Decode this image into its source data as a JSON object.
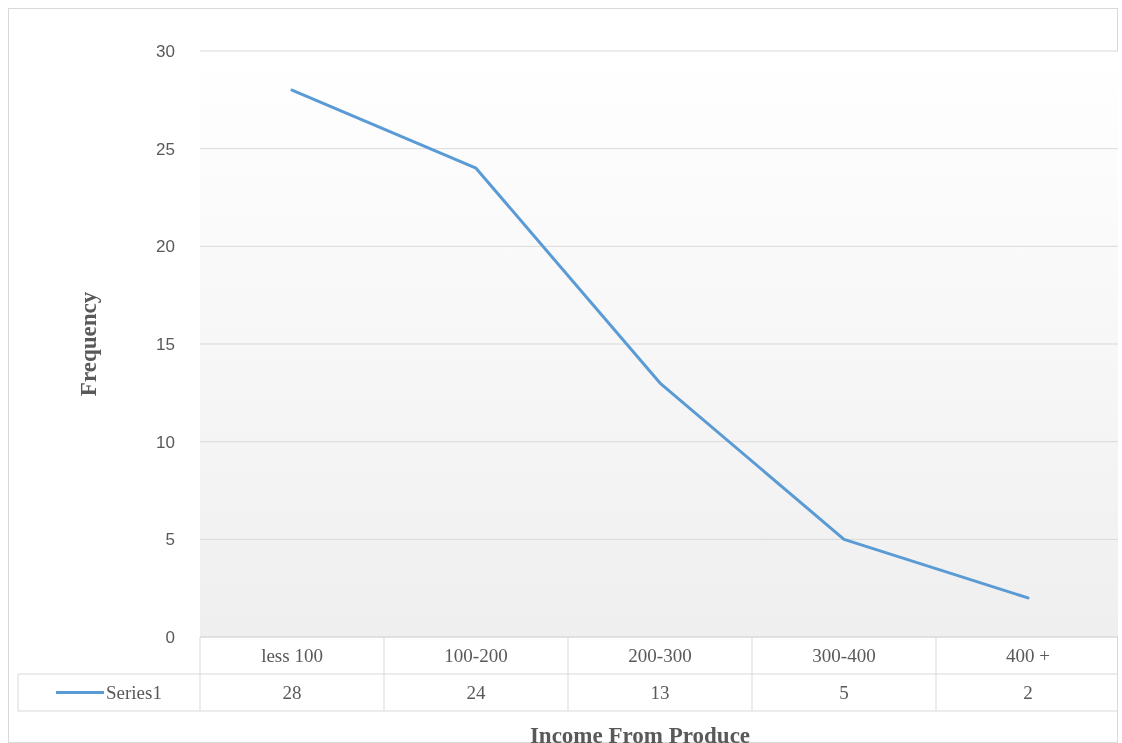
{
  "chart_data": {
    "type": "line",
    "xlabel": "Income From Produce",
    "ylabel": "Frequency",
    "categories": [
      "less 100",
      "100-200",
      "200-300",
      "300-400",
      "400 +"
    ],
    "series": [
      {
        "name": "Series1",
        "color": "#5b9bd5",
        "values": [
          28,
          24,
          13,
          5,
          2
        ]
      }
    ],
    "ylim": [
      0,
      30
    ],
    "yticks": [
      0,
      5,
      10,
      15,
      20,
      25,
      30
    ],
    "grid": "y",
    "legend": "bottom",
    "data_labels": true,
    "marker": "none"
  }
}
